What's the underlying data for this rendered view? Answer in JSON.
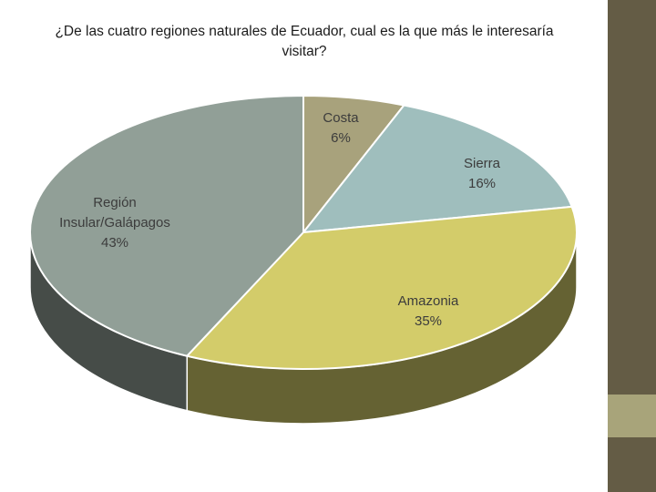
{
  "chart_data": {
    "type": "pie",
    "title": "¿De las cuatro regiones naturales de Ecuador, cual es la que más le interesaría visitar?",
    "slices": [
      {
        "label": "Costa",
        "value_label": "6%",
        "value": 6,
        "color": "#a8a27c"
      },
      {
        "label": "Sierra",
        "value_label": "16%",
        "value": 16,
        "color": "#9fbebd"
      },
      {
        "label": "Amazonia",
        "value_label": "35%",
        "value": 35,
        "color": "#d3cc6a"
      },
      {
        "label": "Región Insular/Galápagos",
        "value_label": "43%",
        "value": 43,
        "color": "#919f97"
      }
    ]
  },
  "theme": {
    "side_bar": "#645c45",
    "side_accent": "#a8a47a"
  }
}
